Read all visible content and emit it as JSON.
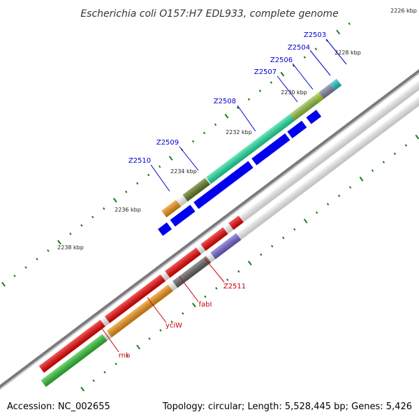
{
  "title": "Escherichia coli O157:H7 EDL933, complete genome",
  "footer": {
    "accession": "Accession: NC_002655",
    "summary": "Topology: circular; Length: 5,528,445 bp; Genes: 5,426"
  },
  "colors": {
    "backbone": "#808080",
    "tick": "#1a7a1a",
    "label_forward": "#0000cc",
    "label_reverse": "#cc0000",
    "gene_forward": "#0000ee",
    "gene_reverse": "#ee0000"
  },
  "tick_labels": [
    "2226 kbp",
    "2228 kbp",
    "2230 kbp",
    "2232 kbp",
    "2234 kbp",
    "2236 kbp",
    "2238 kbp"
  ],
  "genes": [
    {
      "name": "Z2503",
      "strand": "forward",
      "color": "#20c0c0"
    },
    {
      "name": "Z2504",
      "strand": "forward",
      "color": "#8080a0"
    },
    {
      "name": "Z2506",
      "strand": "forward",
      "color": "#a0d020"
    },
    {
      "name": "Z2507",
      "strand": "forward",
      "color": "#90c040"
    },
    {
      "name": "Z2508",
      "strand": "forward",
      "color": "#20e0a0"
    },
    {
      "name": "Z2509",
      "strand": "forward",
      "color": "#607820"
    },
    {
      "name": "Z2510",
      "strand": "forward",
      "color": "#f09010"
    },
    {
      "name": "Z2511",
      "strand": "reverse",
      "color": "#ee0000"
    },
    {
      "name": "fabI",
      "strand": "reverse",
      "color": "#7060d0"
    },
    {
      "name": "yciW",
      "strand": "reverse",
      "color": "#606060"
    },
    {
      "name": "rnb",
      "strand": "reverse",
      "color": "#f09010"
    }
  ]
}
